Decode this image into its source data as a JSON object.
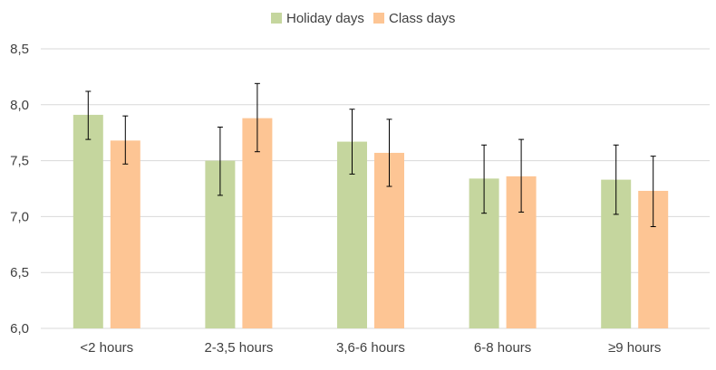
{
  "chart_data": {
    "type": "bar",
    "title": "",
    "xlabel": "",
    "ylabel": "",
    "categories": [
      "<2 hours",
      "2-3,5 hours",
      "3,6-6 hours",
      "6-8 hours",
      "≥9 hours"
    ],
    "series": [
      {
        "name": "Holiday days",
        "color": "#c5d69e",
        "values": [
          7.91,
          7.5,
          7.67,
          7.34,
          7.33
        ],
        "error_low": [
          7.69,
          7.19,
          7.38,
          7.03,
          7.02
        ],
        "error_high": [
          8.12,
          7.8,
          7.96,
          7.64,
          7.64
        ]
      },
      {
        "name": "Class days",
        "color": "#fdc594",
        "values": [
          7.68,
          7.88,
          7.57,
          7.36,
          7.23
        ],
        "error_low": [
          7.47,
          7.58,
          7.27,
          7.04,
          6.91
        ],
        "error_high": [
          7.9,
          8.19,
          7.87,
          7.69,
          7.54
        ]
      }
    ],
    "ylim": [
      6.0,
      8.5
    ],
    "yticks": [
      "6,0",
      "6,5",
      "7,0",
      "7,5",
      "8,0",
      "8,5"
    ],
    "ytick_values": [
      6.0,
      6.5,
      7.0,
      7.5,
      8.0,
      8.5
    ],
    "grid": true,
    "legend_position": "top-center"
  }
}
